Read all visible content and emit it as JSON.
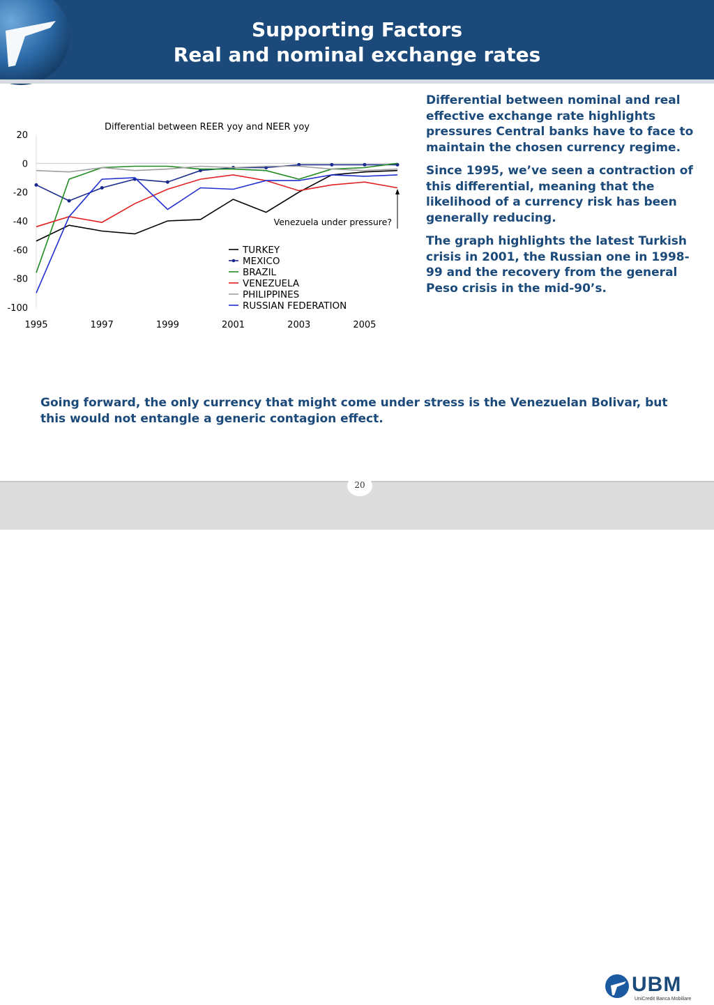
{
  "slide": {
    "title_line1": "Supporting Factors",
    "title_line2": "Real and nominal exchange rates",
    "page_number": "20",
    "side_paragraphs": [
      "Differential between nominal and real effective exchange rate highlights pressures Central banks have to face to maintain the chosen currency regime.",
      "Since 1995, we’ve seen a contraction of this differential, meaning that the likelihood of a currency risk has been generally reducing.",
      "The graph highlights the latest Turkish crisis in 2001, the Russian one in 1998-99 and the recovery from the general Peso crisis in the mid-90’s."
    ],
    "bottom_text": "Going forward, the only currency that might come under stress is the Venezuelan Bolivar, but this would not entangle a generic contagion effect.",
    "logo": {
      "name": "UBM",
      "subtitle": "UniCredit Banca Mobiliare"
    },
    "colors": {
      "header": "#1b4a7a",
      "text": "#1b4a7a",
      "footer": "#dcdcdc"
    }
  },
  "chart_data": {
    "type": "line",
    "title": "Differential between REER yoy and NEER yoy",
    "x": [
      1995,
      1996,
      1997,
      1998,
      1999,
      2000,
      2001,
      2002,
      2003,
      2004,
      2005,
      2006
    ],
    "x_tick_labels": [
      "1995",
      "1997",
      "1999",
      "2001",
      "2003",
      "2005"
    ],
    "y_tick_labels": [
      "20",
      "0",
      "-20",
      "-40",
      "-60",
      "-80",
      "-100"
    ],
    "ylim": [
      -100,
      20
    ],
    "annotation": "Venezuela under pressure?",
    "legend_position": "bottom-right",
    "series": [
      {
        "name": "TURKEY",
        "color": "#000000",
        "markers": false,
        "values": [
          -54,
          -43,
          -47,
          -49,
          -40,
          -39,
          -25,
          -34,
          -20,
          -8,
          -6,
          -5
        ]
      },
      {
        "name": "MEXICO",
        "color": "#1a2a8a",
        "markers": true,
        "values": [
          -15,
          -26,
          -17,
          -11,
          -13,
          -5,
          -3,
          -3,
          -1,
          -1,
          -1,
          -1
        ]
      },
      {
        "name": "BRAZIL",
        "color": "#1f8a1f",
        "markers": false,
        "values": [
          -76,
          -11,
          -3,
          -2,
          -2,
          -4,
          -4,
          -5,
          -11,
          -4,
          -3,
          0
        ]
      },
      {
        "name": "VENEZUELA",
        "color": "#e02020",
        "markers": false,
        "values": [
          -44,
          -37,
          -41,
          -28,
          -18,
          -11,
          -8,
          -12,
          -19,
          -15,
          -13,
          -17
        ]
      },
      {
        "name": "PHILIPPINES",
        "color": "#a0a0a0",
        "markers": false,
        "values": [
          -5,
          -6,
          -3,
          -5,
          -4,
          -2,
          -3,
          -2,
          -2,
          -4,
          -5,
          -4
        ]
      },
      {
        "name": "RUSSIAN FEDERATION",
        "color": "#1f2fd0",
        "markers": false,
        "values": [
          -90,
          -37,
          -11,
          -10,
          -32,
          -17,
          -18,
          -12,
          -12,
          -8,
          -9,
          -8
        ]
      }
    ]
  }
}
